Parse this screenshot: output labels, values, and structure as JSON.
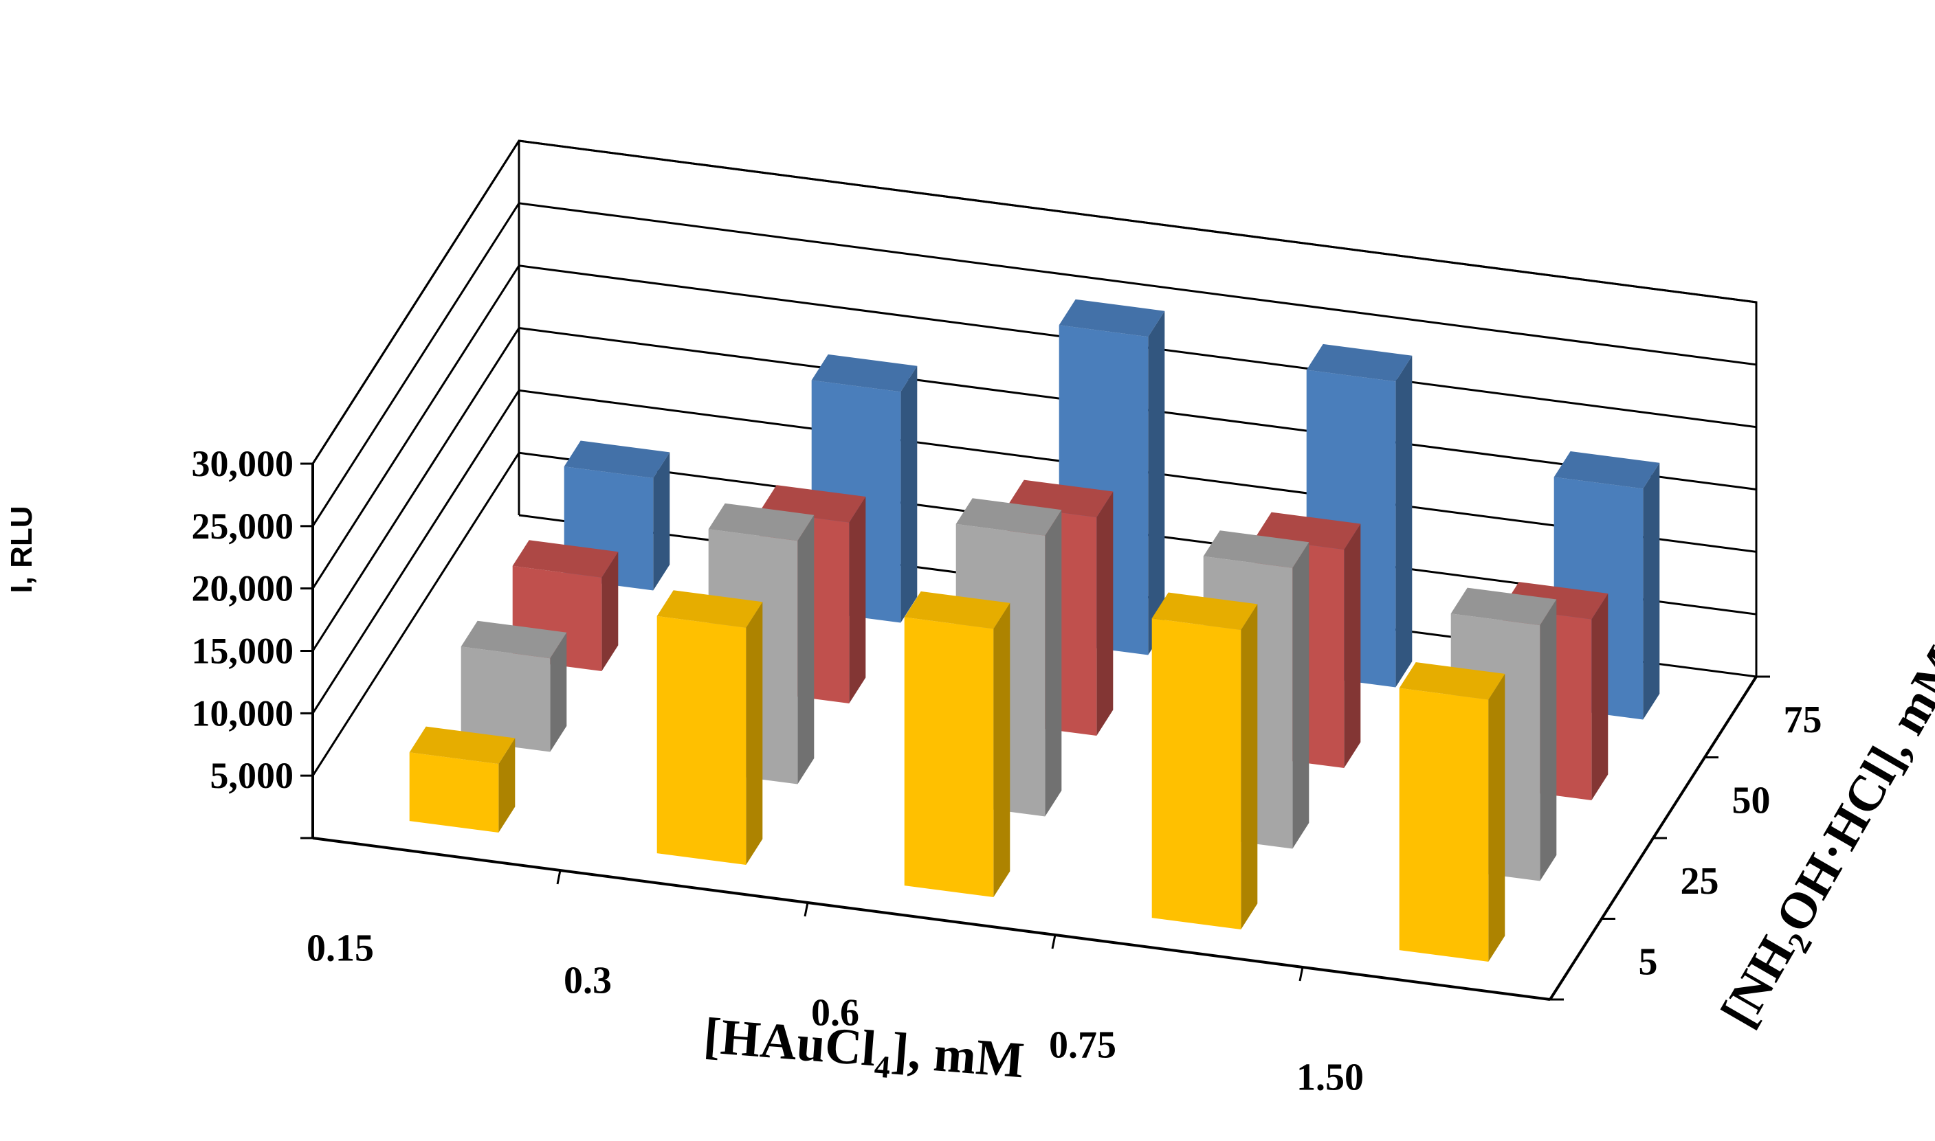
{
  "chart_data": {
    "type": "bar3d",
    "title": "",
    "ylabel": "I, RLU",
    "xlabel": {
      "prefix": "[HAuCl",
      "sub": "4",
      "suffix": "], mM"
    },
    "zlabel": {
      "p1": "[NH",
      "sub": "2",
      "p2": "OH·HCl], mM"
    },
    "ylim": [
      0,
      30000
    ],
    "yticks": [
      5000,
      10000,
      15000,
      20000,
      25000,
      30000
    ],
    "ytick_labels": [
      "5,000",
      "10,000",
      "15,000",
      "20,000",
      "25,000",
      "30,000"
    ],
    "categories": [
      "0.15",
      "0.3",
      "0.6",
      "0.75",
      "1.50"
    ],
    "series": [
      {
        "name": "75",
        "color": "#4a7ebb",
        "values": [
          9000,
          18500,
          25500,
          24500,
          18500
        ]
      },
      {
        "name": "50",
        "color": "#c0504d",
        "values": [
          7500,
          14500,
          17500,
          17500,
          14500
        ]
      },
      {
        "name": "25",
        "color": "#a6a6a6",
        "values": [
          7500,
          19500,
          22500,
          22500,
          20500
        ]
      },
      {
        "name": "5",
        "color": "#ffc000",
        "values": [
          5500,
          19000,
          21500,
          24000,
          21000
        ]
      }
    ]
  }
}
